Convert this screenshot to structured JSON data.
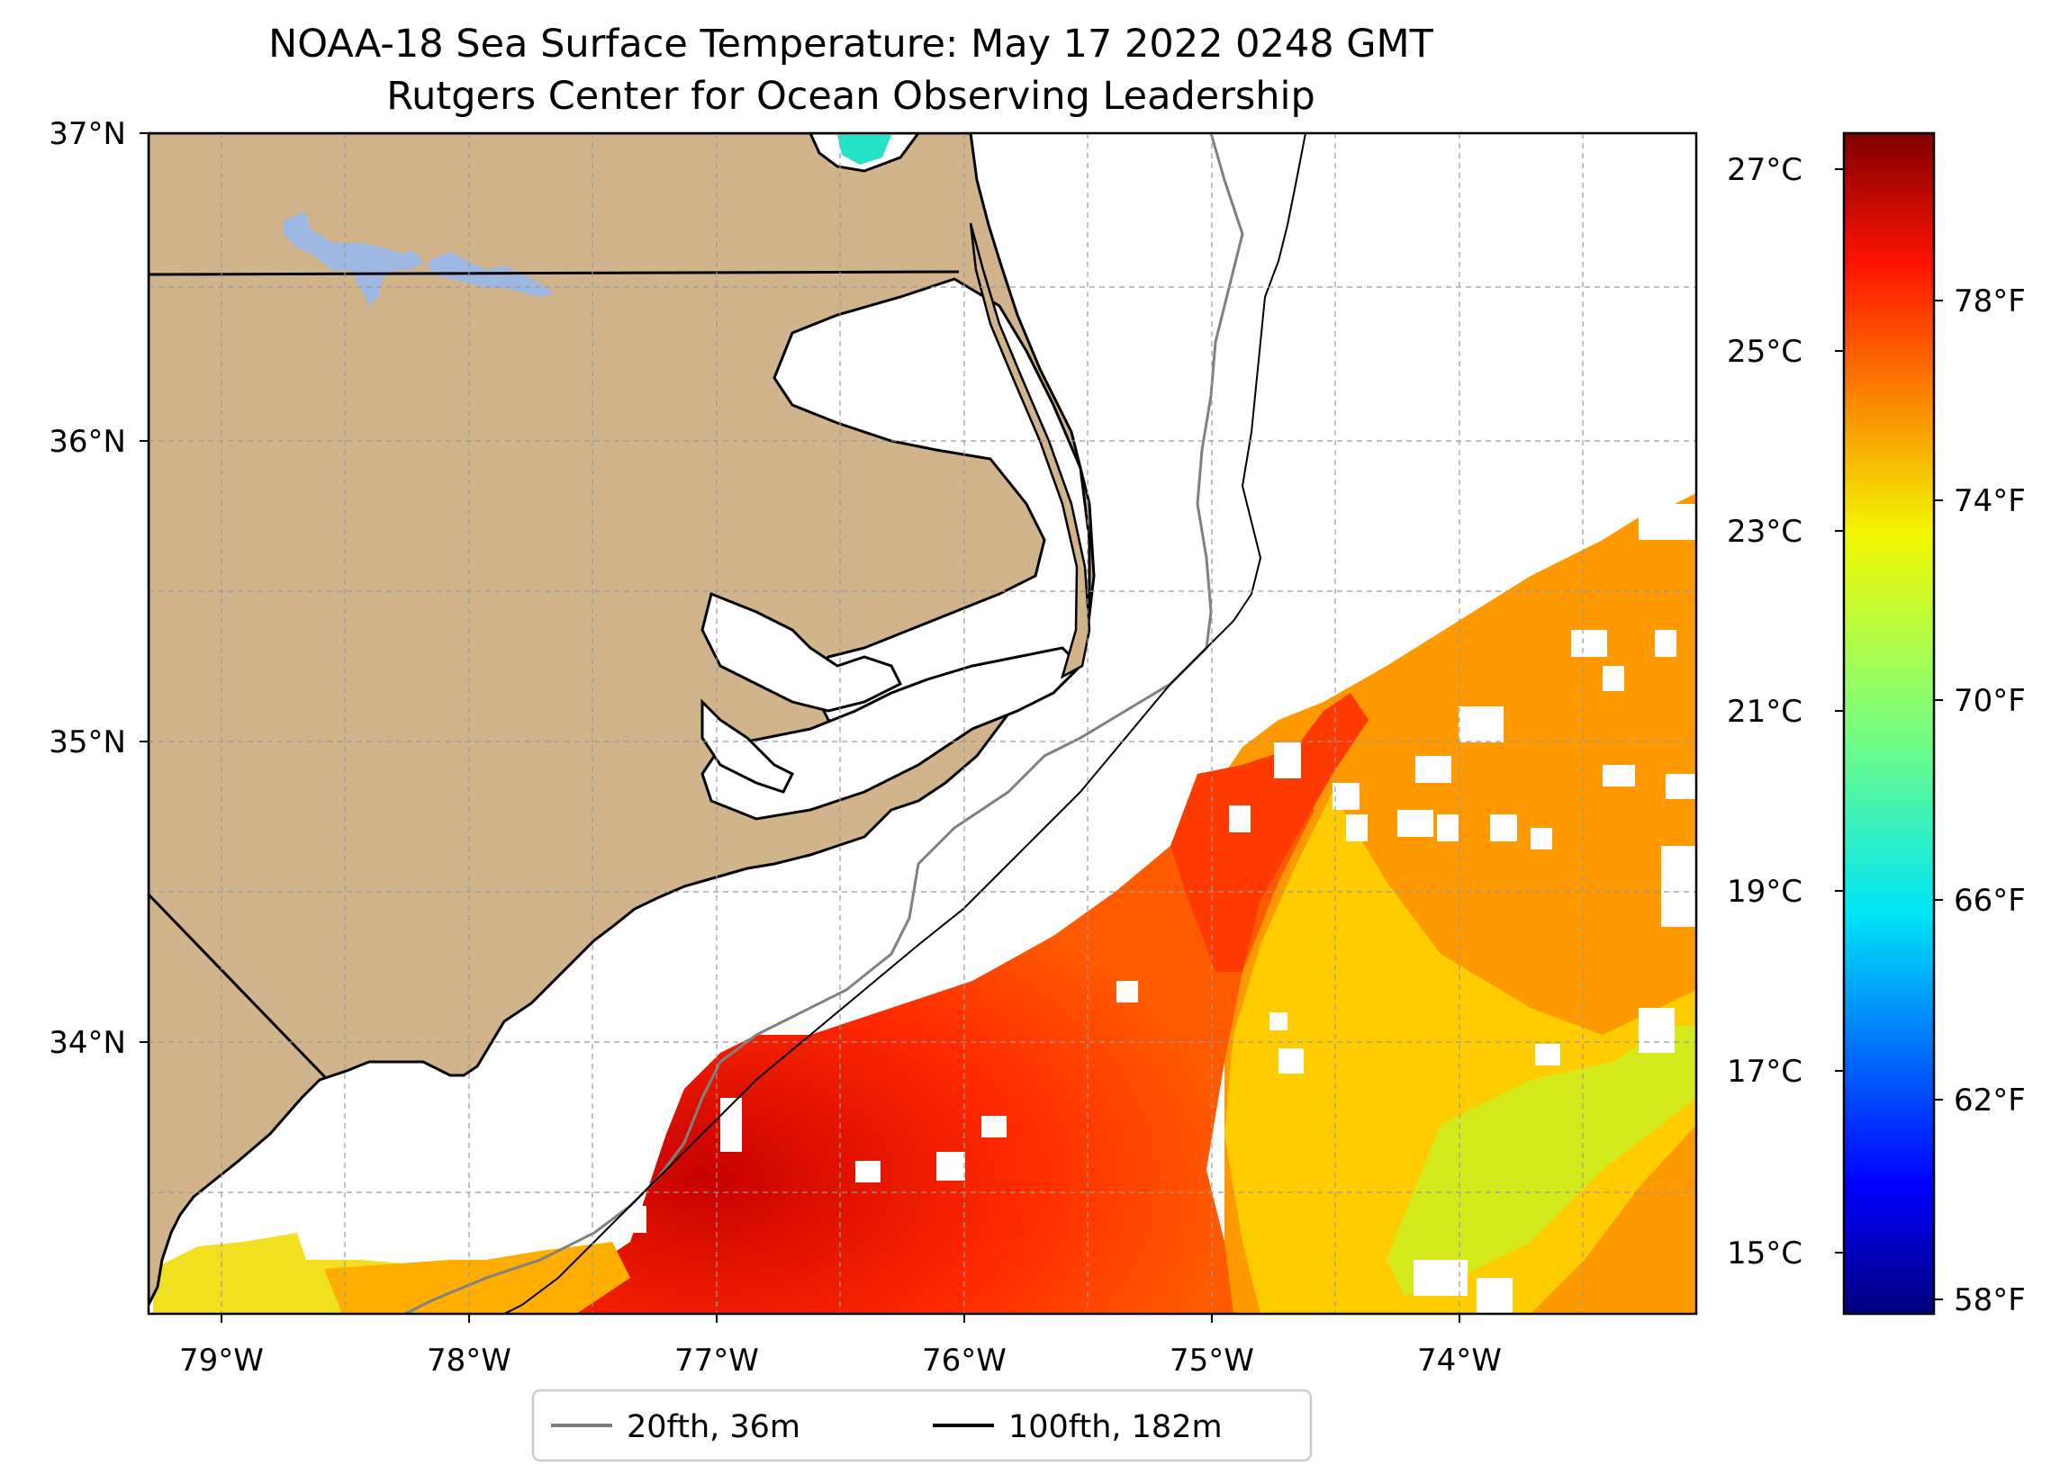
{
  "title": {
    "line1": "NOAA-18 Sea Surface Temperature: May 17 2022 0248 GMT",
    "line2": "Rutgers Center for Ocean Observing Leadership"
  },
  "map": {
    "region": "North Carolina coast and Outer Banks",
    "lon_range": [
      -79.3,
      -73.05
    ],
    "lat_range": [
      33.1,
      37.0
    ],
    "lon_ticks": [
      {
        "value": -79,
        "label": "79°W"
      },
      {
        "value": -78,
        "label": "78°W"
      },
      {
        "value": -77,
        "label": "77°W"
      },
      {
        "value": -76,
        "label": "76°W"
      },
      {
        "value": -75,
        "label": "75°W"
      },
      {
        "value": -74,
        "label": "74°W"
      }
    ],
    "lat_ticks": [
      {
        "value": 37,
        "label": "37°N"
      },
      {
        "value": 36,
        "label": "36°N"
      },
      {
        "value": 35,
        "label": "35°N"
      },
      {
        "value": 34,
        "label": "34°N"
      }
    ],
    "gridlines": true,
    "gridline_style": "dashed",
    "colors": {
      "land": "#D2B48C",
      "coastline": "#000000",
      "lakes": "#9DB9E3",
      "isobath_20fth": "#808080",
      "isobath_100fth": "#000000"
    }
  },
  "legend": {
    "placement": "bottom-center",
    "items": [
      {
        "label": "20fth, 36m",
        "color": "#808080"
      },
      {
        "label": "100fth, 182m",
        "color": "#000000"
      }
    ]
  },
  "colorbar": {
    "colormap": "jet",
    "range_c": [
      14.4,
      27.4
    ],
    "celsius_ticks": [
      {
        "value": 27,
        "label": "27°C"
      },
      {
        "value": 25,
        "label": "25°C"
      },
      {
        "value": 23,
        "label": "23°C"
      },
      {
        "value": 21,
        "label": "21°C"
      },
      {
        "value": 19,
        "label": "19°C"
      },
      {
        "value": 17,
        "label": "17°C"
      },
      {
        "value": 15,
        "label": "15°C"
      }
    ],
    "fahrenheit_ticks": [
      {
        "value": 78,
        "label": "78°F"
      },
      {
        "value": 74,
        "label": "74°F"
      },
      {
        "value": 70,
        "label": "70°F"
      },
      {
        "value": 66,
        "label": "66°F"
      },
      {
        "value": 62,
        "label": "62°F"
      },
      {
        "value": 58,
        "label": "58°F"
      }
    ]
  }
}
